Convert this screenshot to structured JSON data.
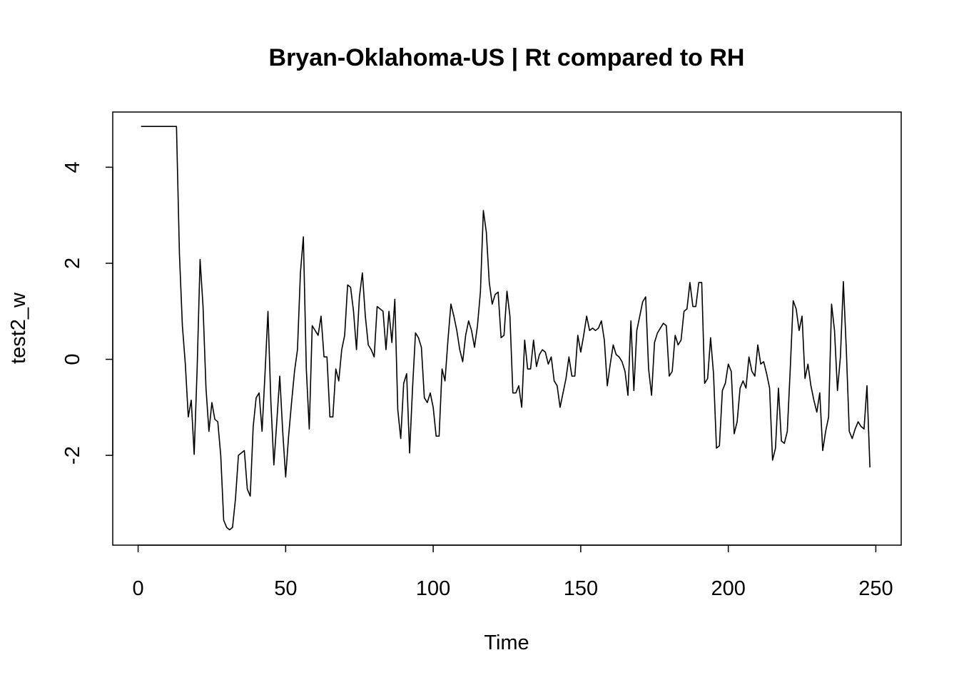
{
  "chart_data": {
    "type": "line",
    "title": "Bryan-Oklahoma-US | Rt compared to RH",
    "xlabel": "Time",
    "ylabel": "test2_w",
    "xlim": [
      -8.6,
      258.6
    ],
    "ylim": [
      -3.87,
      5.15
    ],
    "x_ticks": [
      0,
      50,
      100,
      150,
      200,
      250
    ],
    "x_tick_labels": [
      "0",
      "50",
      "100",
      "150",
      "200",
      "250"
    ],
    "y_ticks": [
      -2,
      0,
      2,
      4
    ],
    "y_tick_labels": [
      "-2",
      "0",
      "2",
      "4"
    ],
    "grid": false,
    "legend": "none",
    "line_color": "#000000",
    "series": [
      {
        "x_start": 1,
        "x_step": 1,
        "values": [
          4.85,
          4.85,
          4.85,
          4.85,
          4.85,
          4.85,
          4.85,
          4.85,
          4.85,
          4.85,
          4.85,
          4.85,
          4.85,
          2.2,
          0.7,
          -0.1,
          -1.2,
          -0.85,
          -1.98,
          -0.2,
          2.08,
          1.1,
          -0.6,
          -1.5,
          -0.9,
          -1.25,
          -1.3,
          -2.0,
          -3.35,
          -3.5,
          -3.55,
          -3.5,
          -2.9,
          -2.0,
          -1.95,
          -1.9,
          -2.7,
          -2.85,
          -1.4,
          -0.8,
          -0.7,
          -1.5,
          -0.3,
          1.0,
          -0.9,
          -2.2,
          -1.3,
          -0.35,
          -1.5,
          -2.45,
          -1.6,
          -0.9,
          -0.25,
          0.2,
          1.8,
          2.55,
          -0.2,
          -1.45,
          0.7,
          0.6,
          0.5,
          0.9,
          0.05,
          0.05,
          -1.2,
          -1.2,
          -0.2,
          -0.45,
          0.2,
          0.5,
          1.55,
          1.5,
          1.0,
          0.2,
          1.3,
          1.8,
          0.9,
          0.3,
          0.2,
          0.05,
          1.1,
          1.05,
          1.0,
          0.2,
          1.0,
          0.35,
          1.25,
          -1.05,
          -1.65,
          -0.5,
          -0.3,
          -1.95,
          -0.6,
          0.55,
          0.45,
          0.25,
          -0.8,
          -0.9,
          -0.7,
          -1.0,
          -1.6,
          -1.6,
          -0.2,
          -0.45,
          0.4,
          1.15,
          0.9,
          0.6,
          0.2,
          -0.05,
          0.5,
          0.8,
          0.6,
          0.25,
          0.7,
          1.4,
          3.1,
          2.65,
          1.6,
          1.15,
          1.35,
          1.4,
          0.45,
          0.5,
          1.42,
          0.9,
          -0.7,
          -0.7,
          -0.55,
          -1.0,
          0.4,
          -0.2,
          -0.2,
          0.4,
          -0.15,
          0.1,
          0.2,
          0.15,
          -0.1,
          0.05,
          -0.45,
          -0.55,
          -1.0,
          -0.7,
          -0.4,
          0.05,
          -0.35,
          -0.35,
          0.5,
          0.15,
          0.5,
          0.9,
          0.6,
          0.65,
          0.6,
          0.65,
          0.8,
          0.4,
          -0.55,
          -0.1,
          0.3,
          0.1,
          0.05,
          -0.05,
          -0.25,
          -0.75,
          0.8,
          -0.65,
          0.6,
          0.9,
          1.2,
          1.3,
          -0.2,
          -0.75,
          0.35,
          0.55,
          0.65,
          0.75,
          0.7,
          -0.35,
          -0.25,
          0.5,
          0.3,
          0.4,
          1.0,
          1.05,
          1.6,
          1.1,
          1.1,
          1.6,
          1.6,
          -0.5,
          -0.4,
          0.45,
          -0.3,
          -1.85,
          -1.8,
          -0.65,
          -0.5,
          -0.1,
          -0.25,
          -1.55,
          -1.3,
          -0.6,
          -0.45,
          -0.6,
          0.05,
          -0.25,
          -0.35,
          0.3,
          -0.1,
          -0.05,
          -0.3,
          -0.6,
          -2.1,
          -1.85,
          -0.6,
          -1.7,
          -1.75,
          -1.5,
          -0.2,
          1.22,
          1.05,
          0.6,
          0.9,
          -0.4,
          -0.1,
          -0.55,
          -0.85,
          -1.1,
          -0.7,
          -1.9,
          -1.5,
          -1.2,
          1.15,
          0.6,
          -0.65,
          0.05,
          1.62,
          0.2,
          -1.5,
          -1.65,
          -1.45,
          -1.3,
          -1.4,
          -1.45,
          -0.55,
          -2.25
        ]
      }
    ]
  }
}
